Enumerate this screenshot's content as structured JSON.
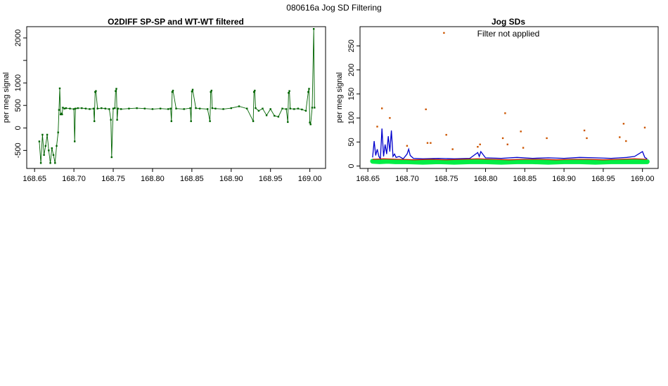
{
  "figure_title": "080616a   Jog SD Filtering",
  "chart_data": [
    {
      "type": "scatter",
      "title": "O2DIFF SP-SP and WT-WT filtered",
      "xlabel": "",
      "ylabel": "per meg signal",
      "xlim": [
        168.64,
        169.02
      ],
      "ylim": [
        -900,
        2250
      ],
      "x_ticks": [
        168.65,
        168.7,
        168.75,
        168.8,
        168.85,
        168.9,
        168.95,
        169.0
      ],
      "x_tick_labels": [
        "168.65",
        "168.70",
        "168.75",
        "168.80",
        "168.85",
        "168.90",
        "168.95",
        "169.00"
      ],
      "y_ticks": [
        -500,
        0,
        500,
        1000,
        1500,
        2000
      ],
      "y_tick_labels": [
        "-500",
        "0",
        "500",
        "1000",
        "",
        "2000"
      ],
      "grid": false,
      "series": [
        {
          "name": "",
          "color": "#006400",
          "style": "points-and-line",
          "x": [
            168.656,
            168.658,
            168.66,
            168.662,
            168.664,
            168.666,
            168.668,
            168.67,
            168.672,
            168.674,
            168.676,
            168.678,
            168.68,
            168.681,
            168.682,
            168.683,
            168.684,
            168.685,
            168.686,
            168.688,
            168.69,
            168.695,
            168.7,
            168.701,
            168.702,
            168.705,
            168.71,
            168.715,
            168.72,
            168.725,
            168.726,
            168.727,
            168.728,
            168.73,
            168.735,
            168.74,
            168.745,
            168.747,
            168.748,
            168.75,
            168.752,
            168.753,
            168.754,
            168.755,
            168.756,
            168.76,
            168.77,
            168.78,
            168.79,
            168.8,
            168.81,
            168.82,
            168.823,
            168.824,
            168.825,
            168.826,
            168.83,
            168.84,
            168.848,
            168.849,
            168.85,
            168.851,
            168.855,
            168.86,
            168.87,
            168.873,
            168.874,
            168.875,
            168.876,
            168.88,
            168.89,
            168.9,
            168.91,
            168.92,
            168.928,
            168.929,
            168.93,
            168.931,
            168.935,
            168.94,
            168.945,
            168.95,
            168.955,
            168.96,
            168.965,
            168.97,
            168.972,
            168.973,
            168.974,
            168.975,
            168.98,
            168.985,
            168.99,
            168.995,
            168.998,
            168.999,
            169.0,
            169.001,
            169.003,
            169.005,
            169.006
          ],
          "y": [
            -300,
            -780,
            -150,
            -600,
            -400,
            -150,
            -500,
            -780,
            -450,
            -600,
            -780,
            -400,
            -100,
            400,
            880,
            300,
            320,
            300,
            450,
            430,
            440,
            430,
            420,
            -300,
            430,
            440,
            440,
            430,
            420,
            430,
            150,
            800,
            820,
            430,
            440,
            430,
            420,
            180,
            -650,
            430,
            440,
            820,
            870,
            180,
            430,
            420,
            430,
            440,
            430,
            420,
            430,
            420,
            430,
            150,
            800,
            830,
            430,
            420,
            440,
            150,
            810,
            850,
            440,
            430,
            420,
            150,
            800,
            830,
            440,
            430,
            420,
            440,
            480,
            430,
            150,
            800,
            830,
            440,
            380,
            430,
            280,
            420,
            270,
            250,
            430,
            420,
            130,
            780,
            820,
            430,
            420,
            430,
            410,
            380,
            800,
            870,
            120,
            80,
            450,
            2200,
            450
          ]
        }
      ]
    },
    {
      "type": "scatter",
      "title": "Jog SDs",
      "annotation": "Filter not applied",
      "xlabel": "",
      "ylabel": "per meg signal",
      "xlim": [
        168.64,
        169.02
      ],
      "ylim": [
        -5,
        290
      ],
      "x_ticks": [
        168.65,
        168.7,
        168.75,
        168.8,
        168.85,
        168.9,
        168.95,
        169.0
      ],
      "x_tick_labels": [
        "168.65",
        "168.70",
        "168.75",
        "168.80",
        "168.85",
        "168.90",
        "168.95",
        "169.00"
      ],
      "y_ticks": [
        0,
        50,
        100,
        150,
        200,
        250
      ],
      "y_tick_labels": [
        "0",
        "50",
        "100",
        "150",
        "200",
        "250"
      ],
      "grid": false,
      "series": [
        {
          "name": "",
          "color": "#00ee44",
          "style": "dense-points",
          "x": [
            168.656,
            168.665,
            168.675,
            168.685,
            168.7,
            168.72,
            168.74,
            168.76,
            168.78,
            168.8,
            168.82,
            168.84,
            168.86,
            168.88,
            168.9,
            168.92,
            168.94,
            168.96,
            168.98,
            169.0,
            169.006
          ],
          "y": [
            10,
            9,
            10,
            9,
            9,
            8,
            9,
            8,
            9,
            9,
            8,
            9,
            9,
            8,
            9,
            9,
            8,
            9,
            9,
            9,
            9
          ]
        },
        {
          "name": "",
          "color": "#0000cc",
          "style": "line",
          "x": [
            168.656,
            168.658,
            168.66,
            168.662,
            168.664,
            168.666,
            168.668,
            168.67,
            168.672,
            168.674,
            168.676,
            168.678,
            168.68,
            168.682,
            168.684,
            168.686,
            168.69,
            168.695,
            168.7,
            168.702,
            168.704,
            168.708,
            168.72,
            168.74,
            168.76,
            168.78,
            168.79,
            168.792,
            168.794,
            168.8,
            168.82,
            168.84,
            168.86,
            168.88,
            168.9,
            168.92,
            168.94,
            168.96,
            168.98,
            168.99,
            169.0,
            169.003,
            169.006
          ],
          "y": [
            18,
            52,
            22,
            35,
            20,
            15,
            78,
            20,
            45,
            25,
            62,
            30,
            74,
            20,
            25,
            18,
            20,
            15,
            25,
            35,
            22,
            16,
            15,
            16,
            15,
            16,
            28,
            20,
            30,
            17,
            16,
            18,
            16,
            17,
            16,
            18,
            17,
            16,
            18,
            20,
            30,
            18,
            15
          ]
        },
        {
          "name": "",
          "color": "#cc2200",
          "style": "line",
          "x": [
            168.656,
            168.67,
            168.69,
            168.71,
            168.73,
            168.75,
            168.77,
            168.79,
            168.81,
            168.83,
            168.85,
            168.87,
            168.89,
            168.91,
            168.93,
            168.95,
            168.97,
            168.99,
            169.006
          ],
          "y": [
            14,
            15,
            14,
            13,
            14,
            13,
            14,
            15,
            14,
            13,
            14,
            14,
            13,
            14,
            14,
            13,
            14,
            15,
            14
          ]
        },
        {
          "name": "",
          "color": "#cc5500",
          "style": "points",
          "x": [
            168.662,
            168.668,
            168.678,
            168.7,
            168.724,
            168.726,
            168.73,
            168.747,
            168.75,
            168.758,
            168.79,
            168.793,
            168.822,
            168.825,
            168.828,
            168.845,
            168.848,
            168.878,
            168.926,
            168.929,
            168.971,
            168.976,
            168.979,
            169.003
          ],
          "y": [
            82,
            120,
            100,
            42,
            118,
            48,
            48,
            277,
            65,
            35,
            40,
            45,
            58,
            110,
            45,
            72,
            38,
            58,
            74,
            58,
            60,
            88,
            52,
            80
          ]
        }
      ]
    }
  ]
}
